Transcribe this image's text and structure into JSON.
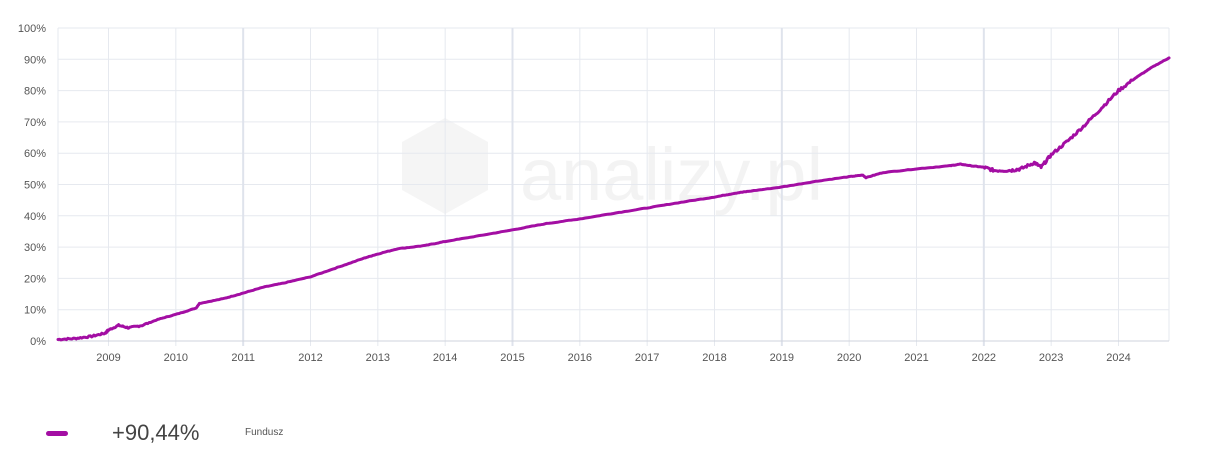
{
  "colors": {
    "series": "#a30ea3",
    "grid": "#e6e9ef",
    "grid_major": "#dfe3ec",
    "axis": "#cfd3dc"
  },
  "watermark": {
    "text": "analizy.pl",
    "icon": "analizy-logo-icon"
  },
  "legend": {
    "value": "+90,44%",
    "name": "Fundusz"
  },
  "chart_data": {
    "type": "line",
    "title": "",
    "xlabel": "",
    "ylabel": "",
    "ylim": [
      0,
      100
    ],
    "xlim": [
      2008.25,
      2024.75
    ],
    "y_ticks": [
      "0%",
      "10%",
      "20%",
      "30%",
      "40%",
      "50%",
      "60%",
      "70%",
      "80%",
      "90%",
      "100%"
    ],
    "x_ticks": [
      "2009",
      "2010",
      "2011",
      "2012",
      "2013",
      "2014",
      "2015",
      "2016",
      "2017",
      "2018",
      "2019",
      "2020",
      "2021",
      "2022",
      "2023",
      "2024"
    ],
    "grid": true,
    "legend_position": "bottom-left",
    "series": [
      {
        "name": "Fundusz",
        "x": [
          2008.25,
          2008.5,
          2008.75,
          2008.95,
          2009.0,
          2009.15,
          2009.3,
          2009.5,
          2009.75,
          2010.0,
          2010.3,
          2010.35,
          2010.7,
          2011.0,
          2011.3,
          2011.6,
          2012.0,
          2012.4,
          2012.8,
          2013.0,
          2013.3,
          2013.7,
          2014.0,
          2014.5,
          2015.0,
          2015.5,
          2016.0,
          2016.5,
          2017.0,
          2017.5,
          2018.0,
          2018.3,
          2018.5,
          2019.0,
          2019.5,
          2020.0,
          2020.2,
          2020.25,
          2020.5,
          2021.0,
          2021.5,
          2021.65,
          2021.8,
          2022.0,
          2022.15,
          2022.4,
          2022.55,
          2022.75,
          2022.85,
          2023.0,
          2023.25,
          2023.5,
          2023.75,
          2024.0,
          2024.25,
          2024.5,
          2024.75
        ],
        "y": [
          0.5,
          0.8,
          1.5,
          2.5,
          3.5,
          5.0,
          4.2,
          5.0,
          7.0,
          8.5,
          10.5,
          12.0,
          13.5,
          15.3,
          17.2,
          18.5,
          20.5,
          23.5,
          26.5,
          27.8,
          29.5,
          30.5,
          31.8,
          33.6,
          35.5,
          37.5,
          39.0,
          40.8,
          42.5,
          44.3,
          46.0,
          47.2,
          47.8,
          49.2,
          51.0,
          52.5,
          53.0,
          52.2,
          53.8,
          55.0,
          56.0,
          56.5,
          56.0,
          55.5,
          54.5,
          54.5,
          55.0,
          57.0,
          55.5,
          59.5,
          64.0,
          69.0,
          74.5,
          80.0,
          84.0,
          87.5,
          90.44
        ]
      }
    ]
  }
}
